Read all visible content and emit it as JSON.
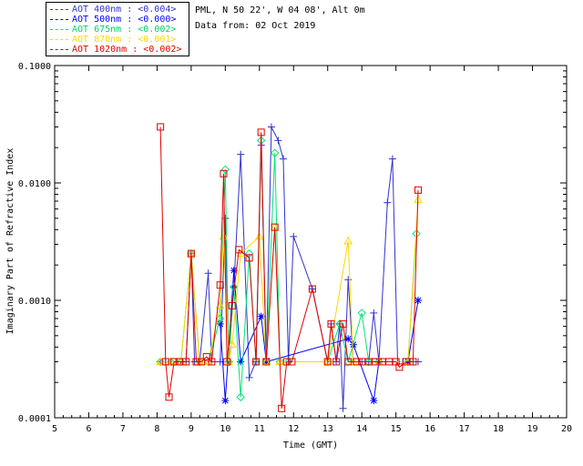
{
  "header": {
    "site": "PML, N 50 22', W 04 08', Alt 0m",
    "date": "Data from: 02 Oct 2019"
  },
  "colors": {
    "s400": "#3333cc",
    "s500": "#0000ff",
    "s675": "#00e676",
    "s870": "#ffd700",
    "s1020": "#e00000"
  },
  "chart_data": {
    "type": "line",
    "xlabel": "Time (GMT)",
    "ylabel": "Imaginary Part of Refractive Index",
    "xlim": [
      5,
      20
    ],
    "ylim": [
      0.0001,
      0.1
    ],
    "yscale": "log",
    "xticks": [
      "5",
      "6",
      "7",
      "8",
      "9",
      "10",
      "11",
      "12",
      "13",
      "14",
      "15",
      "16",
      "17",
      "18",
      "19",
      "20"
    ],
    "yticks": [
      "0.0001",
      "0.0010",
      "0.0100",
      "0.1000"
    ],
    "legend_position": "top-left",
    "series": [
      {
        "name": "AOT 400nm : <0.004>",
        "marker": "+",
        "color": "#3333cc",
        "points": [
          [
            8.1,
            0.0003
          ],
          [
            8.25,
            0.0003
          ],
          [
            8.4,
            0.0003
          ],
          [
            8.55,
            0.0003
          ],
          [
            8.7,
            0.0003
          ],
          [
            8.85,
            0.0003
          ],
          [
            9.0,
            0.0025
          ],
          [
            9.1,
            0.0003
          ],
          [
            9.25,
            0.0003
          ],
          [
            9.5,
            0.0017
          ],
          [
            9.6,
            0.0003
          ],
          [
            9.85,
            0.0003
          ],
          [
            10.0,
            0.005
          ],
          [
            10.1,
            0.0003
          ],
          [
            10.25,
            0.0013
          ],
          [
            10.45,
            0.0175
          ],
          [
            10.7,
            0.00022
          ],
          [
            10.9,
            0.0003
          ],
          [
            11.05,
            0.021
          ],
          [
            11.2,
            0.0003
          ],
          [
            11.35,
            0.03
          ],
          [
            11.55,
            0.023
          ],
          [
            11.7,
            0.016
          ],
          [
            11.85,
            0.0003
          ],
          [
            12.0,
            0.0035
          ],
          [
            12.55,
            0.00125
          ],
          [
            13.0,
            0.0003
          ],
          [
            13.1,
            0.00063
          ],
          [
            13.25,
            0.0003
          ],
          [
            13.35,
            0.00063
          ],
          [
            13.45,
            0.00012
          ],
          [
            13.6,
            0.0015
          ],
          [
            13.75,
            0.0003
          ],
          [
            14.0,
            0.0003
          ],
          [
            14.2,
            0.0003
          ],
          [
            14.35,
            0.00078
          ],
          [
            14.5,
            0.0003
          ],
          [
            14.75,
            0.0068
          ],
          [
            14.9,
            0.016
          ],
          [
            15.05,
            0.0003
          ],
          [
            15.2,
            0.0003
          ],
          [
            15.35,
            0.0003
          ],
          [
            15.5,
            0.0003
          ],
          [
            15.65,
            0.0003
          ]
        ]
      },
      {
        "name": "AOT 500nm : <0.000>",
        "marker": "*",
        "color": "#0000ff",
        "points": [
          [
            9.85,
            0.00063
          ],
          [
            10.0,
            0.00014
          ],
          [
            10.25,
            0.0018
          ],
          [
            10.45,
            0.0003
          ],
          [
            11.05,
            0.00073
          ],
          [
            11.2,
            0.0003
          ],
          [
            13.6,
            0.00047
          ],
          [
            13.75,
            0.00042
          ],
          [
            14.35,
            0.00014
          ],
          [
            14.5,
            0.0003
          ],
          [
            15.35,
            0.0003
          ],
          [
            15.65,
            0.001
          ]
        ]
      },
      {
        "name": "AOT 675nm : <0.002>",
        "marker": "diamond",
        "color": "#00e676",
        "points": [
          [
            8.1,
            0.0003
          ],
          [
            8.4,
            0.0003
          ],
          [
            8.7,
            0.0003
          ],
          [
            9.0,
            0.0025
          ],
          [
            9.25,
            0.0003
          ],
          [
            9.5,
            0.0003
          ],
          [
            9.85,
            0.0007
          ],
          [
            10.0,
            0.013
          ],
          [
            10.1,
            0.0003
          ],
          [
            10.25,
            0.0013
          ],
          [
            10.45,
            0.00015
          ],
          [
            10.7,
            0.0025
          ],
          [
            10.9,
            0.0003
          ],
          [
            11.05,
            0.023
          ],
          [
            11.2,
            0.0003
          ],
          [
            11.45,
            0.018
          ],
          [
            11.6,
            0.0003
          ],
          [
            11.85,
            0.0003
          ],
          [
            13.0,
            0.0003
          ],
          [
            13.35,
            0.00063
          ],
          [
            13.6,
            0.0003
          ],
          [
            14.0,
            0.00078
          ],
          [
            14.2,
            0.0003
          ],
          [
            14.5,
            0.0003
          ],
          [
            15.35,
            0.0003
          ],
          [
            15.6,
            0.0037
          ]
        ]
      },
      {
        "name": "AOT 870nm : <0.001>",
        "marker": "triangle",
        "color": "#ffd700",
        "points": [
          [
            8.1,
            0.0003
          ],
          [
            8.4,
            0.0003
          ],
          [
            8.7,
            0.0003
          ],
          [
            9.0,
            0.0025
          ],
          [
            9.25,
            0.0003
          ],
          [
            9.5,
            0.0003
          ],
          [
            9.85,
            0.0009
          ],
          [
            9.95,
            0.0035
          ],
          [
            10.1,
            0.0003
          ],
          [
            10.2,
            0.00042
          ],
          [
            10.45,
            0.0025
          ],
          [
            11.0,
            0.0035
          ],
          [
            11.2,
            0.0003
          ],
          [
            11.45,
            0.0042
          ],
          [
            11.6,
            0.0003
          ],
          [
            13.0,
            0.0003
          ],
          [
            13.6,
            0.0032
          ],
          [
            13.75,
            0.0003
          ],
          [
            14.5,
            0.0003
          ],
          [
            15.35,
            0.0003
          ],
          [
            15.65,
            0.0072
          ]
        ]
      },
      {
        "name": "AOT 1020nm : <0.002>",
        "marker": "square",
        "color": "#e00000",
        "points": [
          [
            8.1,
            0.03
          ],
          [
            8.25,
            0.0003
          ],
          [
            8.35,
            0.00015
          ],
          [
            8.5,
            0.0003
          ],
          [
            8.65,
            0.0003
          ],
          [
            8.85,
            0.0003
          ],
          [
            9.0,
            0.0025
          ],
          [
            9.15,
            0.0003
          ],
          [
            9.3,
            0.0003
          ],
          [
            9.45,
            0.00033
          ],
          [
            9.6,
            0.0003
          ],
          [
            9.85,
            0.00135
          ],
          [
            9.95,
            0.012
          ],
          [
            10.05,
            0.0003
          ],
          [
            10.2,
            0.0009
          ],
          [
            10.4,
            0.0027
          ],
          [
            10.7,
            0.0023
          ],
          [
            10.9,
            0.0003
          ],
          [
            11.05,
            0.027
          ],
          [
            11.2,
            0.0003
          ],
          [
            11.45,
            0.0042
          ],
          [
            11.65,
            0.00012
          ],
          [
            11.8,
            0.0003
          ],
          [
            11.95,
            0.0003
          ],
          [
            12.55,
            0.00125
          ],
          [
            13.0,
            0.0003
          ],
          [
            13.1,
            0.00063
          ],
          [
            13.25,
            0.0003
          ],
          [
            13.45,
            0.00063
          ],
          [
            13.6,
            0.0003
          ],
          [
            13.85,
            0.0003
          ],
          [
            14.0,
            0.0003
          ],
          [
            14.2,
            0.0003
          ],
          [
            14.4,
            0.0003
          ],
          [
            14.6,
            0.0003
          ],
          [
            14.8,
            0.0003
          ],
          [
            15.0,
            0.0003
          ],
          [
            15.1,
            0.00027
          ],
          [
            15.3,
            0.0003
          ],
          [
            15.5,
            0.0003
          ],
          [
            15.65,
            0.0087
          ]
        ]
      }
    ]
  }
}
